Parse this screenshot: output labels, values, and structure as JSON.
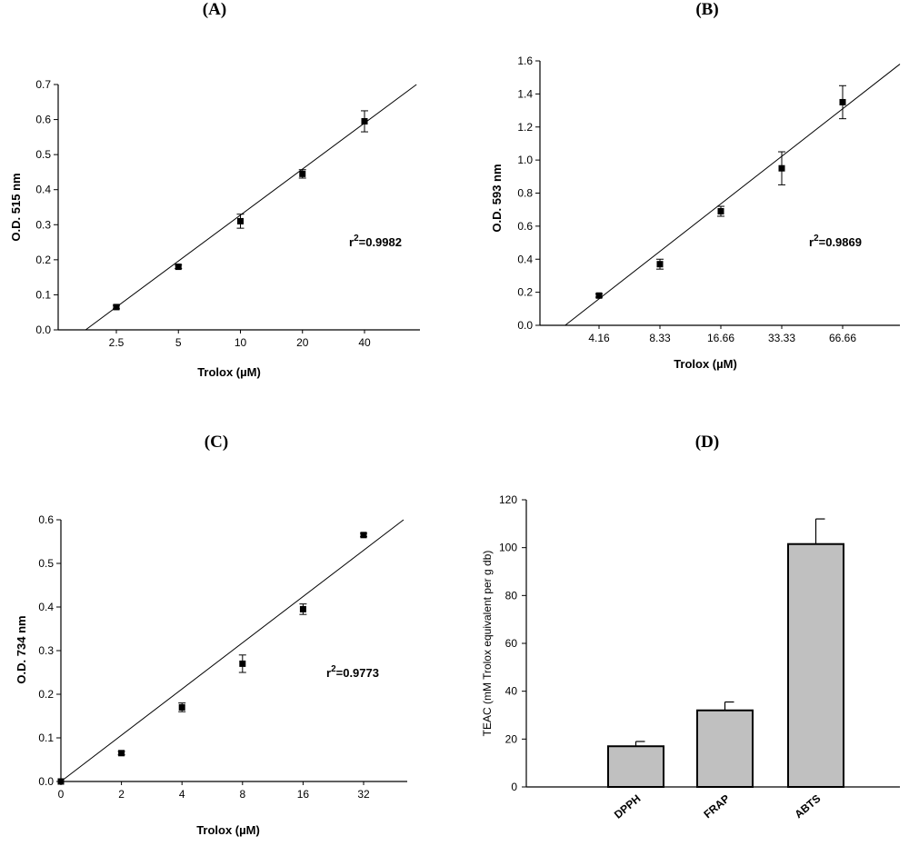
{
  "chart_data": [
    {
      "panel": "(A)",
      "type": "scatter",
      "x": [
        "2.5",
        "5",
        "10",
        "20",
        "40"
      ],
      "y": [
        0.065,
        0.18,
        0.31,
        0.445,
        0.595
      ],
      "error": [
        0.005,
        0.005,
        0.02,
        0.012,
        0.03
      ],
      "fit_line": {
        "y_at_first": 0.065,
        "y_at_last": 0.59
      },
      "annotation": {
        "pre": "r",
        "sup": "2",
        "post": "=0.9982"
      },
      "xlabel": "Trolox (µM)",
      "ylabel": "O.D. 515 nm",
      "yticks": [
        "0.0",
        "0.1",
        "0.2",
        "0.3",
        "0.4",
        "0.5",
        "0.6",
        "0.7"
      ],
      "ylim": [
        0,
        0.7
      ]
    },
    {
      "panel": "(B)",
      "type": "scatter",
      "x": [
        "4.16",
        "8.33",
        "16.66",
        "33.33",
        "66.66"
      ],
      "y": [
        0.18,
        0.37,
        0.69,
        0.95,
        1.35
      ],
      "error": [
        0.01,
        0.03,
        0.03,
        0.1,
        0.1
      ],
      "fit_line": {
        "y_at_first": 0.16,
        "y_at_last": 1.31
      },
      "annotation": {
        "pre": "r",
        "sup": "2",
        "post": "=0.9869"
      },
      "xlabel": "Trolox (µM)",
      "ylabel": "O.D. 593 nm",
      "yticks": [
        "0.0",
        "0.2",
        "0.4",
        "0.6",
        "0.8",
        "1.0",
        "1.2",
        "1.4",
        "1.6"
      ],
      "ylim": [
        0,
        1.6
      ]
    },
    {
      "panel": "(C)",
      "type": "scatter",
      "x": [
        "0",
        "2",
        "4",
        "8",
        "16",
        "32"
      ],
      "y": [
        0.0,
        0.065,
        0.17,
        0.27,
        0.395,
        0.565
      ],
      "error": [
        0,
        0.004,
        0.01,
        0.02,
        0.012,
        0.004
      ],
      "fit_line": {
        "y_at_first": 0.0,
        "y_at_last": 0.53
      },
      "annotation": {
        "pre": "r",
        "sup": "2",
        "post": "=0.9773"
      },
      "xlabel": "Trolox (µM)",
      "ylabel": "O.D. 734 nm",
      "yticks": [
        "0.0",
        "0.1",
        "0.2",
        "0.3",
        "0.4",
        "0.5",
        "0.6"
      ],
      "ylim": [
        0,
        0.6
      ]
    },
    {
      "panel": "(D)",
      "type": "bar",
      "categories": [
        "DPPH",
        "FRAP",
        "ABTS"
      ],
      "values": [
        17,
        32,
        101.5
      ],
      "error": [
        2,
        3.5,
        10.5
      ],
      "bar_color": "#c0c0c0",
      "ylabel": "TEAC (mM Trolox equivalent per g db)",
      "yticks": [
        "0",
        "20",
        "40",
        "60",
        "80",
        "100",
        "120"
      ],
      "ylim": [
        0,
        120
      ]
    }
  ]
}
